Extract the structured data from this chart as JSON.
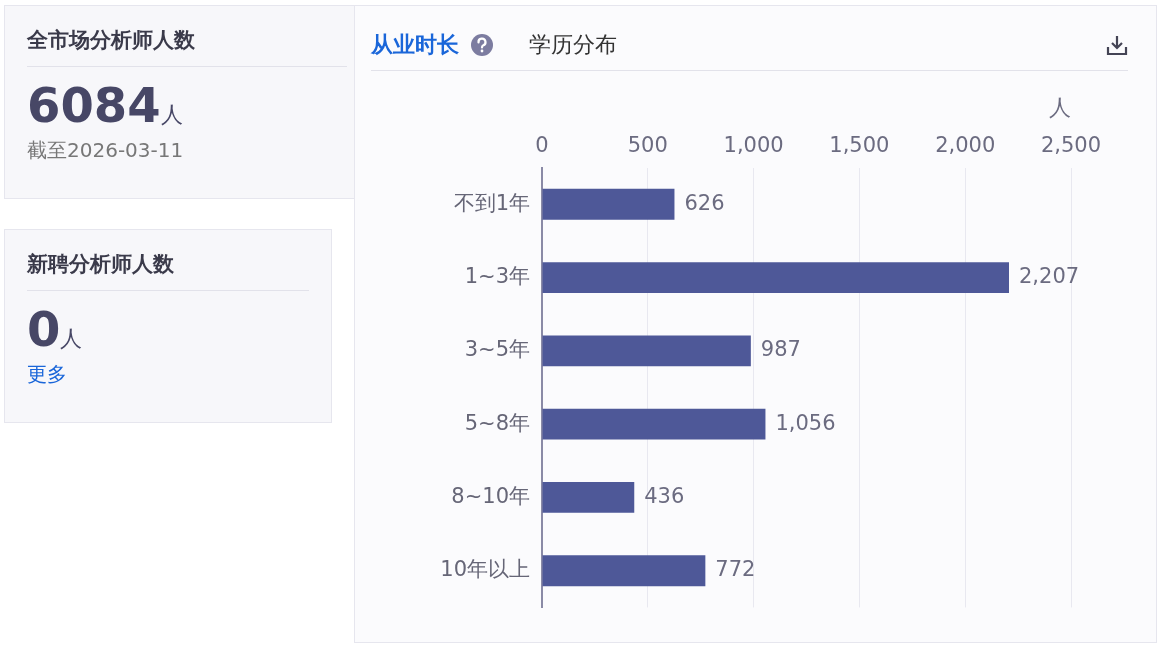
{
  "chart_data": [
    {
      "type": "other",
      "title": "全市场分析师人数",
      "annotations": [
        "6084",
        "人",
        "截至2026-03-11"
      ]
    },
    {
      "type": "other",
      "title": "新聘分析师人数",
      "annotations": [
        "0",
        "人",
        "更多"
      ]
    },
    {
      "type": "bar",
      "orientation": "horizontal",
      "title": "从业时长",
      "subtitle": "学历分布",
      "xlabel": "人",
      "categories": [
        "不到1年",
        "1~3年",
        "3~5年",
        "5~8年",
        "8~10年",
        "10年以上"
      ],
      "values": [
        626,
        2207,
        987,
        1056,
        436,
        772
      ],
      "color": "#4e5898",
      "xlim": [
        0,
        2500
      ],
      "xticks": [
        0,
        500,
        {
          "value": 1000,
          "label": "1,000"
        },
        {
          "value": 1500,
          "label": "1,500"
        },
        {
          "value": 2000,
          "label": "2,000"
        },
        {
          "value": 2500,
          "label": "2,500"
        }
      ],
      "grid": "x",
      "value_labels": [
        "626",
        "2,207",
        "987",
        "1,056",
        "436",
        "772"
      ]
    }
  ]
}
